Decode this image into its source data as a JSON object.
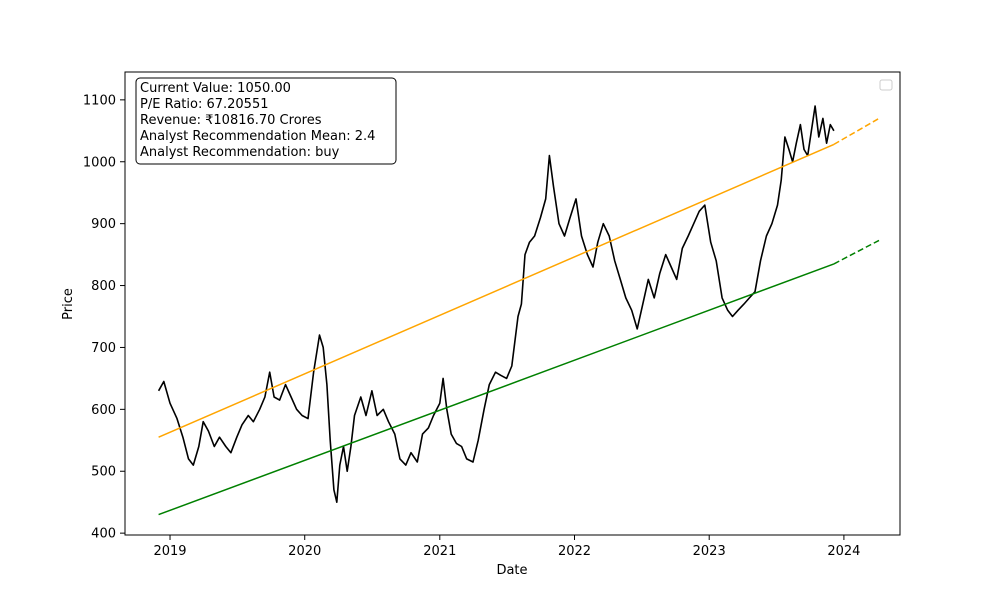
{
  "chart_data": {
    "type": "line",
    "title": "",
    "xlabel": "Date",
    "ylabel": "Price",
    "xlim": [
      "2018-09-01",
      "2024-06-01"
    ],
    "ylim": [
      397,
      1145
    ],
    "x_ticks": [
      "2019",
      "2020",
      "2021",
      "2022",
      "2023",
      "2024"
    ],
    "y_ticks": [
      400,
      500,
      600,
      700,
      800,
      900,
      1000,
      1100
    ],
    "grid": false,
    "legend": {
      "position": "top-right",
      "entries": []
    },
    "info_box": [
      "Current Value: 1050.00",
      "P/E Ratio: 67.20551",
      "Revenue: ₹10816.70 Crores",
      "Analyst Recommendation Mean: 2.4",
      "Analyst Recommendation: buy"
    ],
    "series": [
      {
        "color": "#000000",
        "style": "solid",
        "points": [
          [
            "2018-12-01",
            630
          ],
          [
            "2018-12-15",
            645
          ],
          [
            "2019-01-01",
            610
          ],
          [
            "2019-01-20",
            585
          ],
          [
            "2019-02-05",
            555
          ],
          [
            "2019-02-20",
            520
          ],
          [
            "2019-03-05",
            510
          ],
          [
            "2019-03-20",
            540
          ],
          [
            "2019-04-01",
            580
          ],
          [
            "2019-04-15",
            565
          ],
          [
            "2019-05-01",
            540
          ],
          [
            "2019-05-15",
            555
          ],
          [
            "2019-06-01",
            540
          ],
          [
            "2019-06-15",
            530
          ],
          [
            "2019-07-01",
            555
          ],
          [
            "2019-07-15",
            575
          ],
          [
            "2019-08-01",
            590
          ],
          [
            "2019-08-15",
            580
          ],
          [
            "2019-09-01",
            600
          ],
          [
            "2019-09-15",
            620
          ],
          [
            "2019-09-28",
            660
          ],
          [
            "2019-10-10",
            620
          ],
          [
            "2019-10-25",
            615
          ],
          [
            "2019-11-10",
            640
          ],
          [
            "2019-11-25",
            620
          ],
          [
            "2019-12-10",
            600
          ],
          [
            "2019-12-25",
            590
          ],
          [
            "2020-01-10",
            585
          ],
          [
            "2020-01-25",
            660
          ],
          [
            "2020-02-10",
            720
          ],
          [
            "2020-02-20",
            700
          ],
          [
            "2020-03-01",
            640
          ],
          [
            "2020-03-10",
            550
          ],
          [
            "2020-03-20",
            470
          ],
          [
            "2020-03-28",
            450
          ],
          [
            "2020-04-05",
            510
          ],
          [
            "2020-04-15",
            540
          ],
          [
            "2020-04-25",
            500
          ],
          [
            "2020-05-05",
            540
          ],
          [
            "2020-05-15",
            590
          ],
          [
            "2020-06-01",
            620
          ],
          [
            "2020-06-15",
            590
          ],
          [
            "2020-07-01",
            630
          ],
          [
            "2020-07-15",
            590
          ],
          [
            "2020-08-01",
            600
          ],
          [
            "2020-08-15",
            580
          ],
          [
            "2020-09-01",
            560
          ],
          [
            "2020-09-15",
            520
          ],
          [
            "2020-10-01",
            510
          ],
          [
            "2020-10-15",
            530
          ],
          [
            "2020-11-01",
            515
          ],
          [
            "2020-11-15",
            560
          ],
          [
            "2020-12-01",
            570
          ],
          [
            "2020-12-15",
            590
          ],
          [
            "2021-01-01",
            610
          ],
          [
            "2021-01-10",
            650
          ],
          [
            "2021-01-20",
            600
          ],
          [
            "2021-02-01",
            560
          ],
          [
            "2021-02-15",
            545
          ],
          [
            "2021-03-01",
            540
          ],
          [
            "2021-03-15",
            520
          ],
          [
            "2021-04-01",
            515
          ],
          [
            "2021-04-15",
            550
          ],
          [
            "2021-05-01",
            600
          ],
          [
            "2021-05-15",
            640
          ],
          [
            "2021-06-01",
            660
          ],
          [
            "2021-06-15",
            655
          ],
          [
            "2021-07-01",
            650
          ],
          [
            "2021-07-15",
            670
          ],
          [
            "2021-08-01",
            750
          ],
          [
            "2021-08-10",
            770
          ],
          [
            "2021-08-20",
            850
          ],
          [
            "2021-09-01",
            870
          ],
          [
            "2021-09-15",
            880
          ],
          [
            "2021-10-01",
            910
          ],
          [
            "2021-10-15",
            940
          ],
          [
            "2021-10-25",
            1010
          ],
          [
            "2021-11-05",
            960
          ],
          [
            "2021-11-20",
            900
          ],
          [
            "2021-12-05",
            880
          ],
          [
            "2021-12-20",
            910
          ],
          [
            "2022-01-05",
            940
          ],
          [
            "2022-01-20",
            880
          ],
          [
            "2022-02-05",
            850
          ],
          [
            "2022-02-20",
            830
          ],
          [
            "2022-03-05",
            870
          ],
          [
            "2022-03-20",
            900
          ],
          [
            "2022-04-05",
            880
          ],
          [
            "2022-04-20",
            840
          ],
          [
            "2022-05-05",
            810
          ],
          [
            "2022-05-20",
            780
          ],
          [
            "2022-06-05",
            760
          ],
          [
            "2022-06-20",
            730
          ],
          [
            "2022-07-05",
            770
          ],
          [
            "2022-07-20",
            810
          ],
          [
            "2022-08-05",
            780
          ],
          [
            "2022-08-20",
            820
          ],
          [
            "2022-09-05",
            850
          ],
          [
            "2022-09-20",
            830
          ],
          [
            "2022-10-05",
            810
          ],
          [
            "2022-10-20",
            860
          ],
          [
            "2022-11-05",
            880
          ],
          [
            "2022-11-20",
            900
          ],
          [
            "2022-12-05",
            920
          ],
          [
            "2022-12-20",
            930
          ],
          [
            "2023-01-05",
            870
          ],
          [
            "2023-01-20",
            840
          ],
          [
            "2023-02-05",
            780
          ],
          [
            "2023-02-20",
            760
          ],
          [
            "2023-03-05",
            750
          ],
          [
            "2023-03-20",
            760
          ],
          [
            "2023-04-05",
            770
          ],
          [
            "2023-04-20",
            780
          ],
          [
            "2023-05-05",
            790
          ],
          [
            "2023-05-20",
            840
          ],
          [
            "2023-06-05",
            880
          ],
          [
            "2023-06-20",
            900
          ],
          [
            "2023-07-05",
            930
          ],
          [
            "2023-07-15",
            970
          ],
          [
            "2023-07-25",
            1040
          ],
          [
            "2023-08-05",
            1020
          ],
          [
            "2023-08-15",
            1000
          ],
          [
            "2023-08-25",
            1030
          ],
          [
            "2023-09-05",
            1060
          ],
          [
            "2023-09-15",
            1020
          ],
          [
            "2023-09-25",
            1010
          ],
          [
            "2023-10-05",
            1050
          ],
          [
            "2023-10-15",
            1090
          ],
          [
            "2023-10-25",
            1040
          ],
          [
            "2023-11-05",
            1070
          ],
          [
            "2023-11-15",
            1030
          ],
          [
            "2023-11-25",
            1060
          ],
          [
            "2023-12-05",
            1050
          ]
        ]
      },
      {
        "color": "#FFA500",
        "style": "solid",
        "points": [
          [
            "2018-12-01",
            555
          ],
          [
            "2023-12-05",
            1028
          ]
        ]
      },
      {
        "color": "#FFA500",
        "style": "dashed",
        "points": [
          [
            "2023-12-05",
            1028
          ],
          [
            "2024-04-05",
            1070
          ]
        ]
      },
      {
        "color": "#008000",
        "style": "solid",
        "points": [
          [
            "2018-12-01",
            430
          ],
          [
            "2023-12-05",
            835
          ]
        ]
      },
      {
        "color": "#008000",
        "style": "dashed",
        "points": [
          [
            "2023-12-05",
            835
          ],
          [
            "2024-04-05",
            873
          ]
        ]
      }
    ]
  }
}
